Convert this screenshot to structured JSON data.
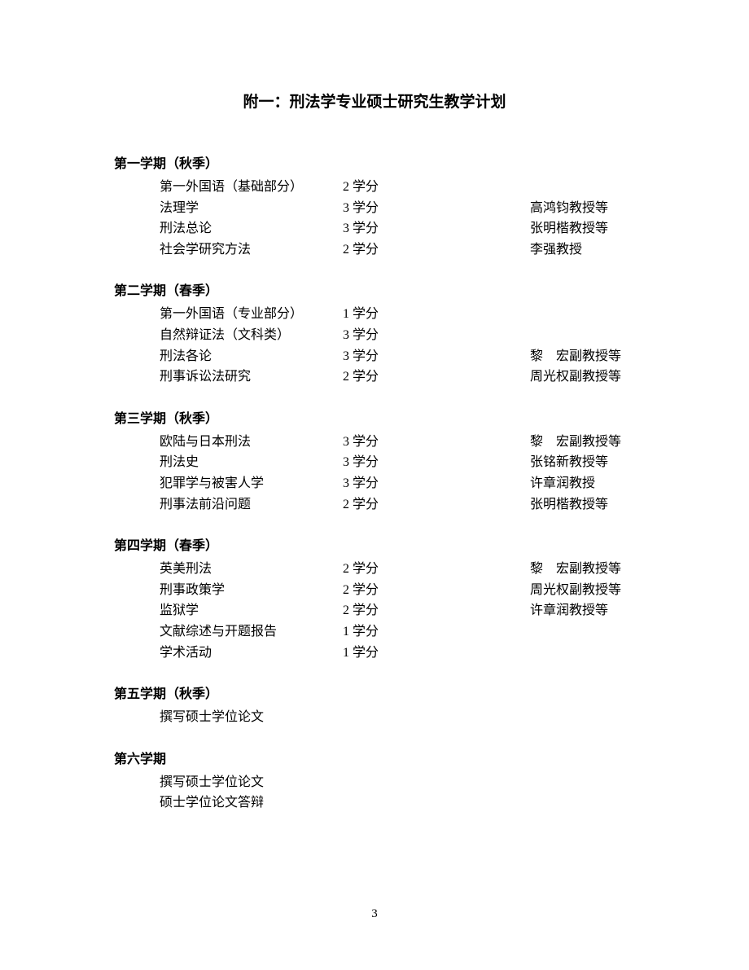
{
  "title": "附一：刑法学专业硕士研究生教学计划",
  "semesters": [
    {
      "header": "第一学期（秋季）",
      "courses": [
        {
          "name": "第一外国语（基础部分）",
          "credit": "2 学分",
          "instructor": ""
        },
        {
          "name": "法理学",
          "credit": "3 学分",
          "instructor": "高鸿钧教授等"
        },
        {
          "name": "刑法总论",
          "credit": "3 学分",
          "instructor": "张明楷教授等"
        },
        {
          "name": "社会学研究方法",
          "credit": "2 学分",
          "instructor": "李强教授"
        }
      ]
    },
    {
      "header": "第二学期（春季）",
      "courses": [
        {
          "name": "第一外国语（专业部分）",
          "credit": "1 学分",
          "instructor": ""
        },
        {
          "name": "自然辩证法（文科类）",
          "credit": "3 学分",
          "instructor": ""
        },
        {
          "name": "刑法各论",
          "credit": "3 学分",
          "instructor": "黎　宏副教授等"
        },
        {
          "name": "刑事诉讼法研究",
          "credit": "2 学分",
          "instructor": "周光权副教授等"
        }
      ]
    },
    {
      "header": "第三学期（秋季）",
      "courses": [
        {
          "name": "欧陆与日本刑法",
          "credit": "3 学分",
          "instructor": "黎　宏副教授等"
        },
        {
          "name": "刑法史",
          "credit": "3 学分",
          "instructor": "张铭新教授等"
        },
        {
          "name": "犯罪学与被害人学",
          "credit": "3 学分",
          "instructor": "许章润教授"
        },
        {
          "name": "刑事法前沿问题",
          "credit": "2 学分",
          "instructor": "张明楷教授等"
        }
      ]
    },
    {
      "header": "第四学期（春季）",
      "courses": [
        {
          "name": "英美刑法",
          "credit": "2 学分",
          "instructor": "黎　宏副教授等"
        },
        {
          "name": "刑事政策学",
          "credit": "2 学分",
          "instructor": "周光权副教授等"
        },
        {
          "name": "监狱学",
          "credit": "2 学分",
          "instructor": "许章润教授等"
        },
        {
          "name": "文献综述与开题报告",
          "credit": "1 学分",
          "instructor": ""
        },
        {
          "name": "学术活动",
          "credit": "1 学分",
          "instructor": ""
        }
      ]
    },
    {
      "header": "第五学期（秋季）",
      "courses": [
        {
          "name": "撰写硕士学位论文",
          "credit": "",
          "instructor": ""
        }
      ]
    },
    {
      "header": "第六学期",
      "courses": [
        {
          "name": "撰写硕士学位论文",
          "credit": "",
          "instructor": ""
        },
        {
          "name": "硕士学位论文答辩",
          "credit": "",
          "instructor": ""
        }
      ]
    }
  ],
  "pageNumber": "3"
}
